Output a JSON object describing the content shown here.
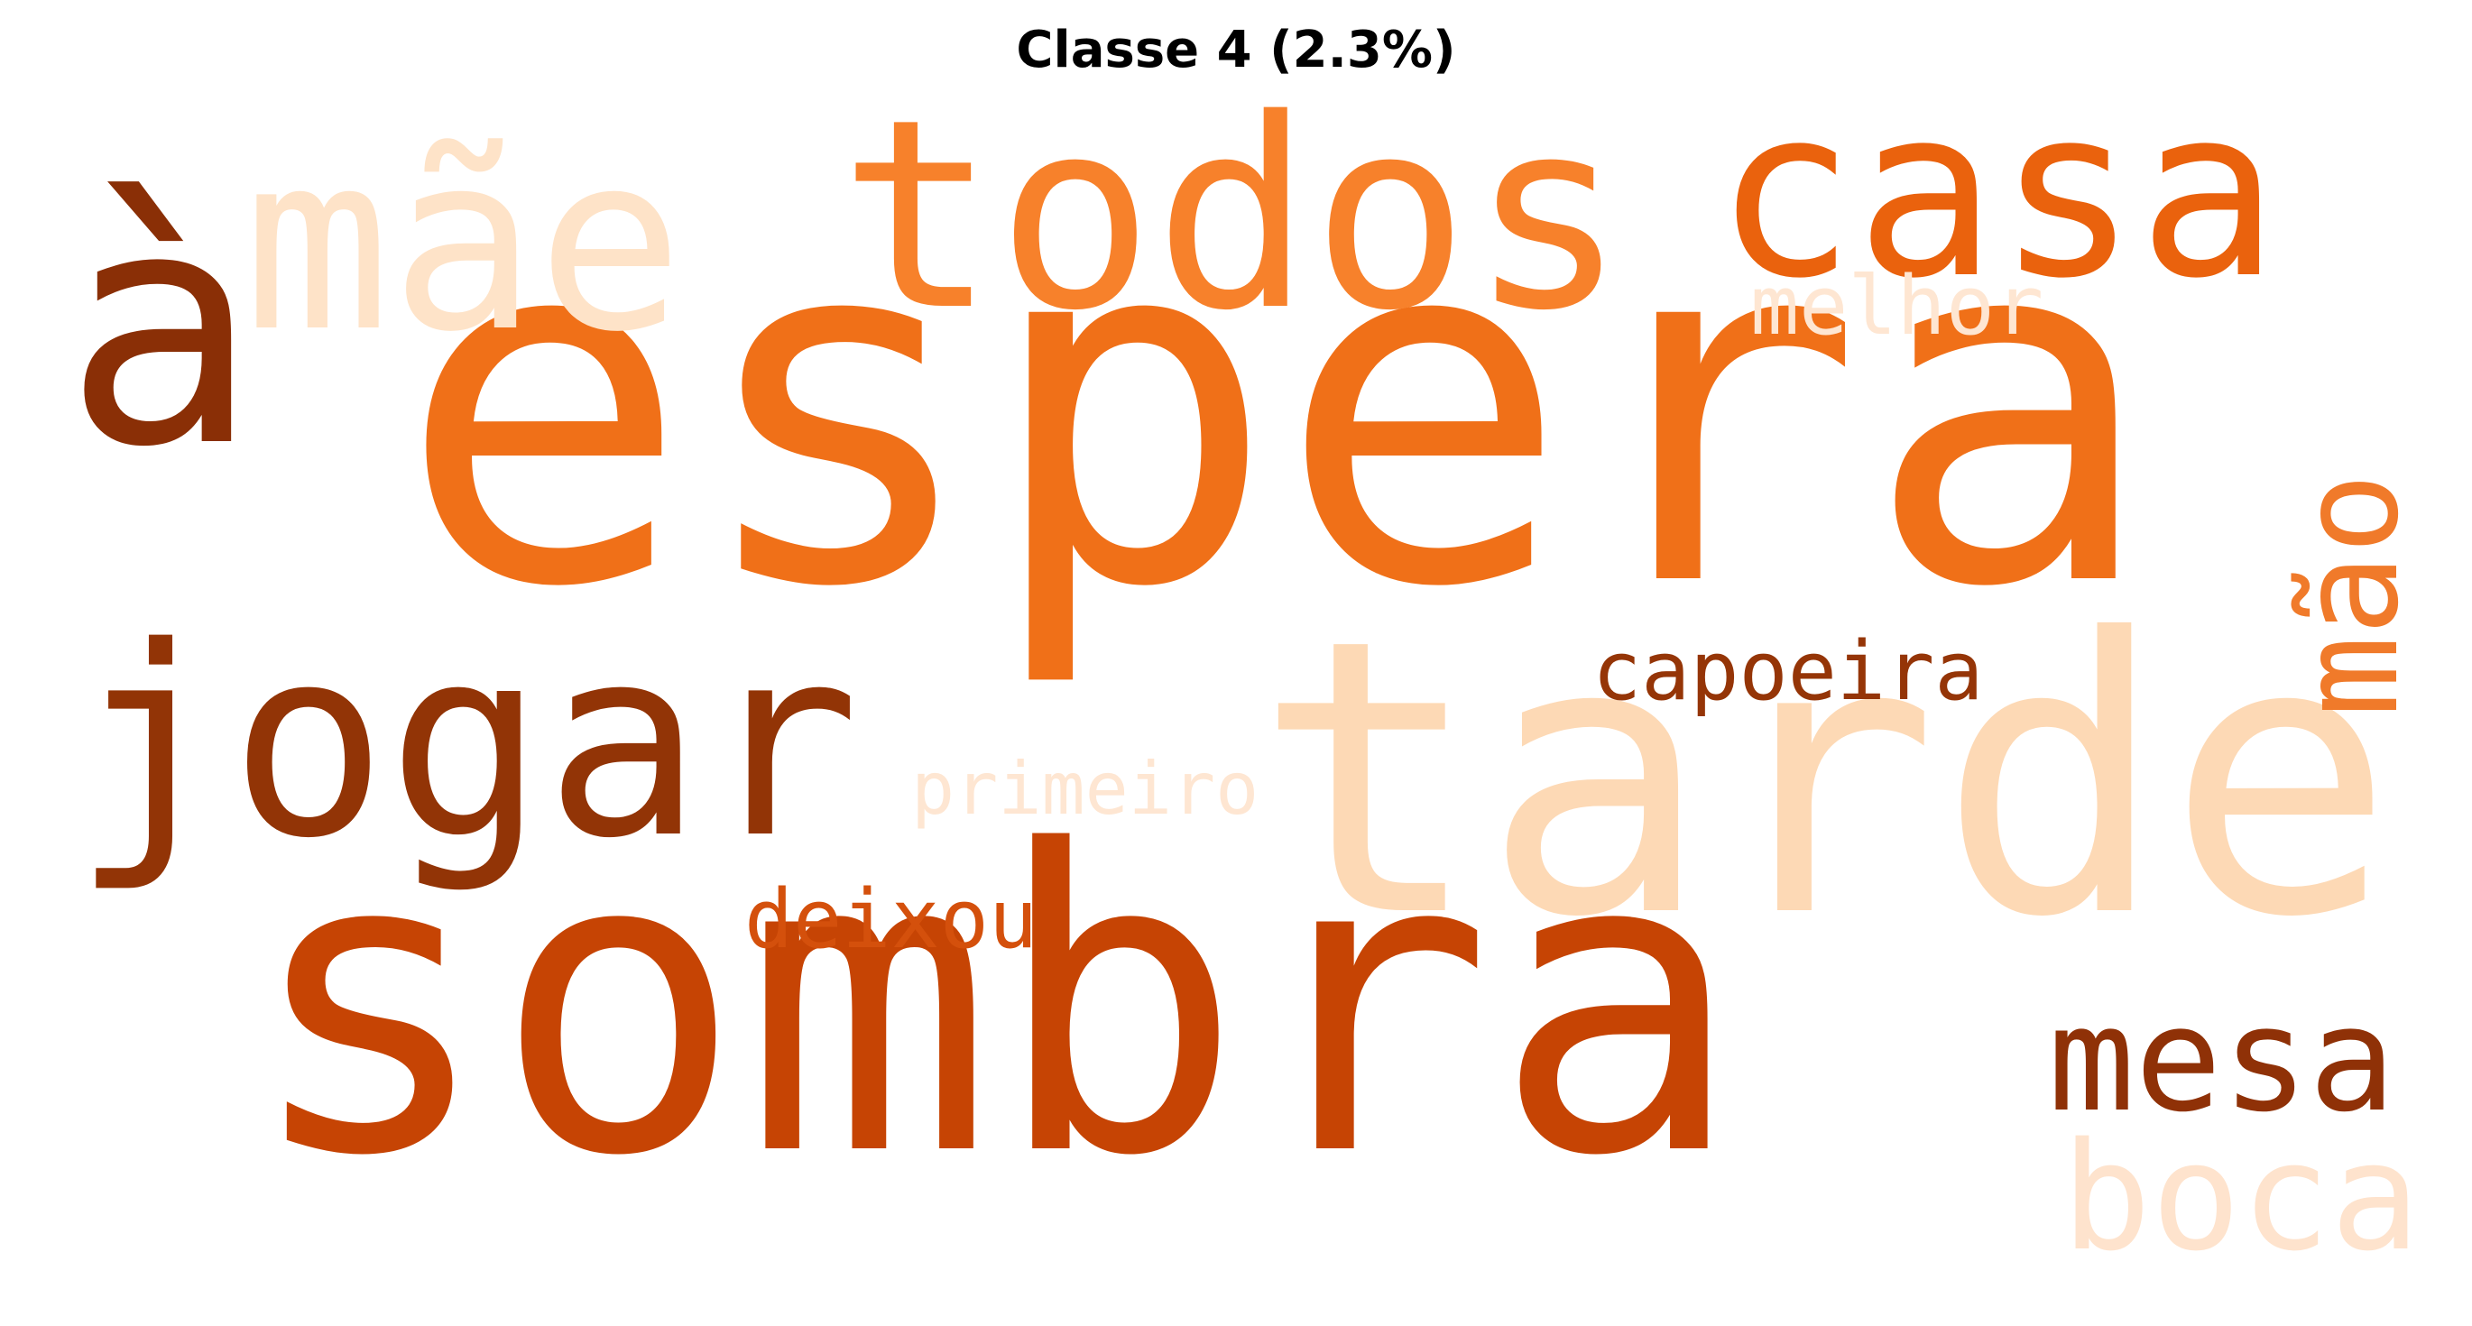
{
  "title": "Classe 4 (2.3%)",
  "words": [
    {
      "text": "à",
      "color": "#8a2f06"
    },
    {
      "text": "espera",
      "color": "#f07018"
    },
    {
      "text": "sombra",
      "color": "#c64404"
    },
    {
      "text": "tarde",
      "color": "#fdd9b5"
    },
    {
      "text": "todos",
      "color": "#f7812b"
    },
    {
      "text": "jogar",
      "color": "#923406"
    },
    {
      "text": "mãe",
      "color": "#fee3c8"
    },
    {
      "text": "casa",
      "color": "#ea620d"
    },
    {
      "text": "mesa",
      "color": "#8f3107"
    },
    {
      "text": "boca",
      "color": "#fee3cd"
    },
    {
      "text": "mão",
      "color": "#f07a2a"
    },
    {
      "text": "capoeira",
      "color": "#953507"
    },
    {
      "text": "deixou",
      "color": "#d4500c"
    },
    {
      "text": "primeiro",
      "color": "#fee6d2"
    },
    {
      "text": "melhor",
      "color": "#fee6d2"
    }
  ]
}
